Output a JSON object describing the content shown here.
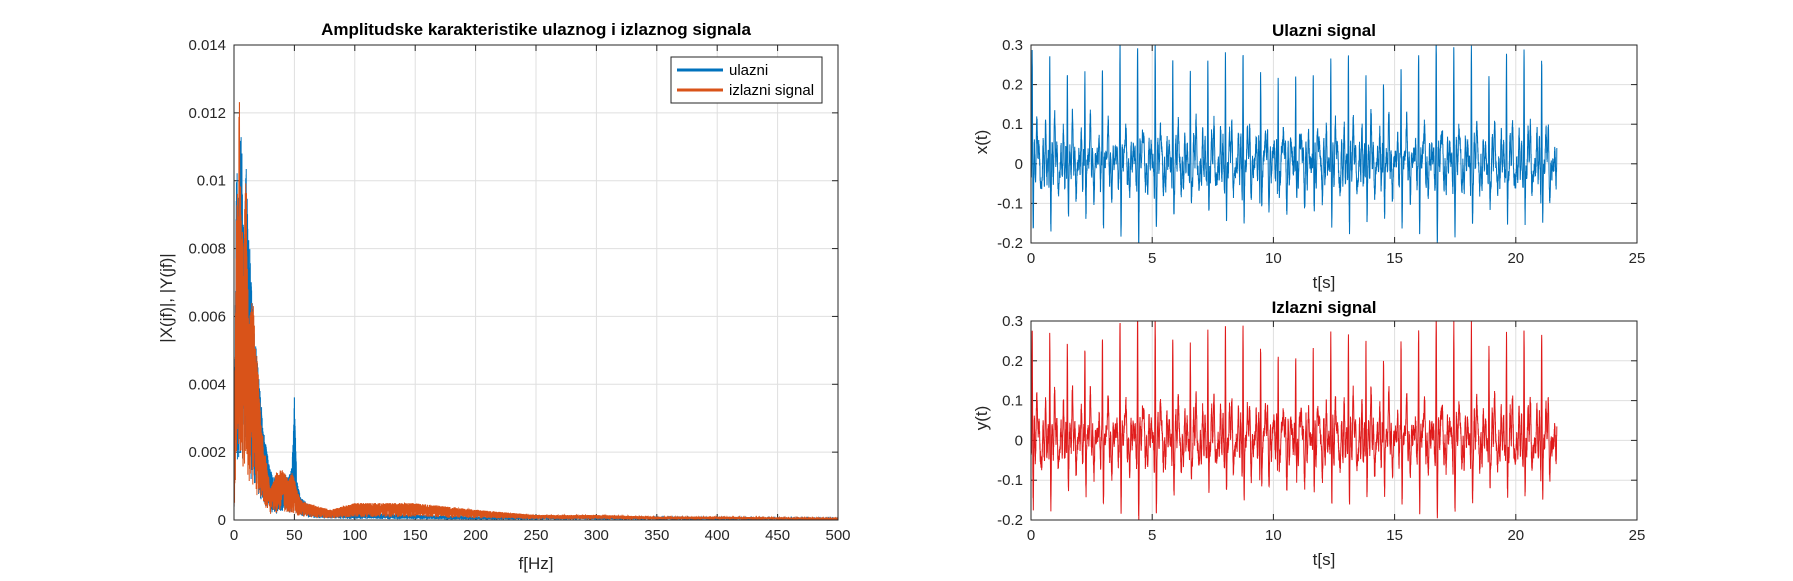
{
  "chart_data": [
    {
      "type": "line",
      "title": "Amplitudske karakteristike ulaznog i izlaznog signala",
      "xlabel": "f[Hz]",
      "ylabel": "|X(jf)|, |Y(jf)|",
      "xlim": [
        0,
        500
      ],
      "ylim": [
        0,
        0.014
      ],
      "xticks": [
        0,
        50,
        100,
        150,
        200,
        250,
        300,
        350,
        400,
        450,
        500
      ],
      "yticks": [
        0,
        0.002,
        0.004,
        0.006,
        0.008,
        0.01,
        0.012,
        0.014
      ],
      "ytick_labels": [
        "0",
        "0.002",
        "0.004",
        "0.006",
        "0.008",
        "0.01",
        "0.012",
        "0.014"
      ],
      "grid": true,
      "legend_position": "top-right",
      "series": [
        {
          "name": "ulazni",
          "color": "#0072BD",
          "x": [
            0,
            2,
            4,
            6,
            8,
            10,
            15,
            20,
            25,
            30,
            35,
            40,
            45,
            48,
            50,
            52,
            55,
            60,
            70,
            80,
            100,
            150,
            200,
            300,
            400,
            500
          ],
          "y": [
            0.0005,
            0.011,
            0.0095,
            0.012,
            0.0085,
            0.0105,
            0.0065,
            0.0045,
            0.0025,
            0.0015,
            0.0012,
            0.0014,
            0.0013,
            0.0016,
            0.0036,
            0.0012,
            0.0007,
            0.0005,
            0.0003,
            0.00025,
            0.0002,
            0.00015,
            0.0001,
            0.0001,
            8e-05,
            6e-05
          ]
        },
        {
          "name": "izlazni signal",
          "color": "#D95319",
          "x": [
            0,
            2,
            4,
            5,
            6,
            8,
            10,
            12,
            15,
            18,
            20,
            22,
            25,
            28,
            30,
            35,
            40,
            45,
            48,
            50,
            52,
            55,
            60,
            70,
            80,
            100,
            150,
            200,
            250,
            300,
            350,
            400,
            450,
            500
          ],
          "y": [
            0.0005,
            0.0095,
            0.0123,
            0.0108,
            0.0092,
            0.0082,
            0.0106,
            0.006,
            0.007,
            0.0052,
            0.0045,
            0.003,
            0.0022,
            0.0015,
            0.0009,
            0.0014,
            0.0015,
            0.0012,
            0.0014,
            0.0012,
            0.0009,
            0.0006,
            0.0005,
            0.0004,
            0.0003,
            0.0005,
            0.0005,
            0.0003,
            0.00015,
            0.00015,
            0.0001,
            0.0001,
            8e-05,
            6e-05
          ]
        }
      ]
    },
    {
      "type": "line",
      "title": "Ulazni signal",
      "xlabel": "t[s]",
      "ylabel": "x(t)",
      "xlim": [
        0,
        25
      ],
      "ylim": [
        -0.2,
        0.3
      ],
      "xticks": [
        0,
        5,
        10,
        15,
        20,
        25
      ],
      "yticks": [
        -0.2,
        -0.1,
        0,
        0.1,
        0.2,
        0.3
      ],
      "grid": true,
      "signal_duration": 21.7,
      "beat_count": 30,
      "peak_values": [
        0.27,
        0.26,
        0.26,
        0.26,
        0.25,
        0.26,
        0.25,
        0.26,
        0.25,
        0.24,
        0.26,
        0.25,
        0.26,
        0.24,
        0.25,
        0.27,
        0.25,
        0.26,
        0.26,
        0.25,
        0.24,
        0.26,
        0.25,
        0.26,
        0.24,
        0.27,
        0.24,
        0.28,
        0.26,
        0.24
      ],
      "trough_values": [
        -0.14,
        -0.14,
        -0.13,
        -0.14,
        -0.14,
        -0.13,
        -0.14,
        -0.13,
        -0.14,
        -0.13,
        -0.14,
        -0.13,
        -0.14,
        -0.13,
        -0.13,
        -0.14,
        -0.14,
        -0.13,
        -0.14,
        -0.13,
        -0.14,
        -0.14,
        -0.13,
        -0.14,
        -0.13,
        -0.14,
        -0.13,
        -0.16,
        -0.14,
        -0.13
      ],
      "series": [
        {
          "color": "#0072BD"
        }
      ]
    },
    {
      "type": "line",
      "title": "Izlazni signal",
      "xlabel": "t[s]",
      "ylabel": "y(t)",
      "xlim": [
        0,
        25
      ],
      "ylim": [
        -0.2,
        0.3
      ],
      "xticks": [
        0,
        5,
        10,
        15,
        20,
        25
      ],
      "yticks": [
        -0.2,
        -0.1,
        0,
        0.1,
        0.2,
        0.3
      ],
      "grid": true,
      "signal_duration": 21.7,
      "beat_count": 30,
      "peak_values": [
        0.27,
        0.26,
        0.26,
        0.26,
        0.25,
        0.26,
        0.25,
        0.26,
        0.25,
        0.24,
        0.26,
        0.25,
        0.26,
        0.24,
        0.25,
        0.27,
        0.25,
        0.26,
        0.26,
        0.25,
        0.24,
        0.26,
        0.25,
        0.26,
        0.24,
        0.27,
        0.24,
        0.26,
        0.26,
        0.24
      ],
      "trough_values": [
        -0.14,
        -0.14,
        -0.13,
        -0.14,
        -0.14,
        -0.13,
        -0.14,
        -0.13,
        -0.14,
        -0.13,
        -0.14,
        -0.13,
        -0.14,
        -0.13,
        -0.13,
        -0.14,
        -0.14,
        -0.13,
        -0.14,
        -0.13,
        -0.14,
        -0.14,
        -0.13,
        -0.14,
        -0.13,
        -0.14,
        -0.13,
        -0.16,
        -0.14,
        -0.13
      ],
      "series": [
        {
          "color": "#E01A1A"
        }
      ]
    }
  ]
}
